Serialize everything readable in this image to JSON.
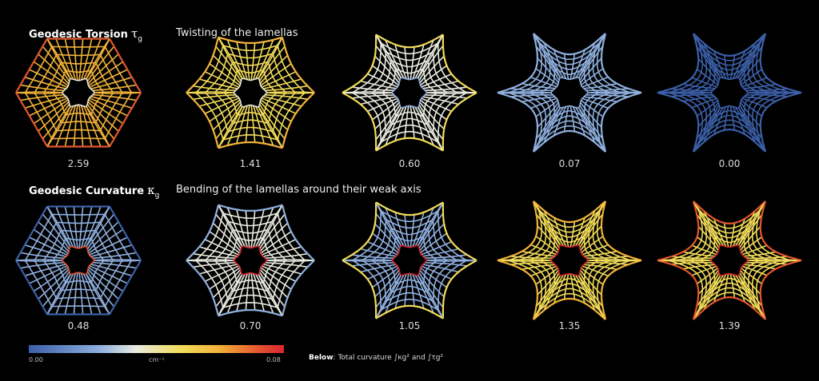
{
  "sections": {
    "torsion": {
      "title": "Geodesic Torsion",
      "symbol": "τ",
      "subscript": "g",
      "caption": "Twisting of the lamellas",
      "values": [
        "2.59",
        "1.41",
        "0.60",
        "0.07",
        "0.00"
      ]
    },
    "curvature": {
      "title": "Geodesic Curvature",
      "symbol": "κ",
      "subscript": "g",
      "caption": "Bending of the lamellas around their weak axis",
      "values": [
        "0.48",
        "0.70",
        "1.05",
        "1.35",
        "1.39"
      ]
    }
  },
  "colorbar": {
    "min": "0.00",
    "unit": "cm⁻¹",
    "max": "0.08",
    "colors": [
      "#3b5fa8",
      "#8fb0df",
      "#e9eadf",
      "#f2dc59",
      "#f3b33a",
      "#e4572e",
      "#d8262e"
    ]
  },
  "note": {
    "bold": "Below",
    "text": ": Total curvature ∫κg² and ∫τg²"
  }
}
